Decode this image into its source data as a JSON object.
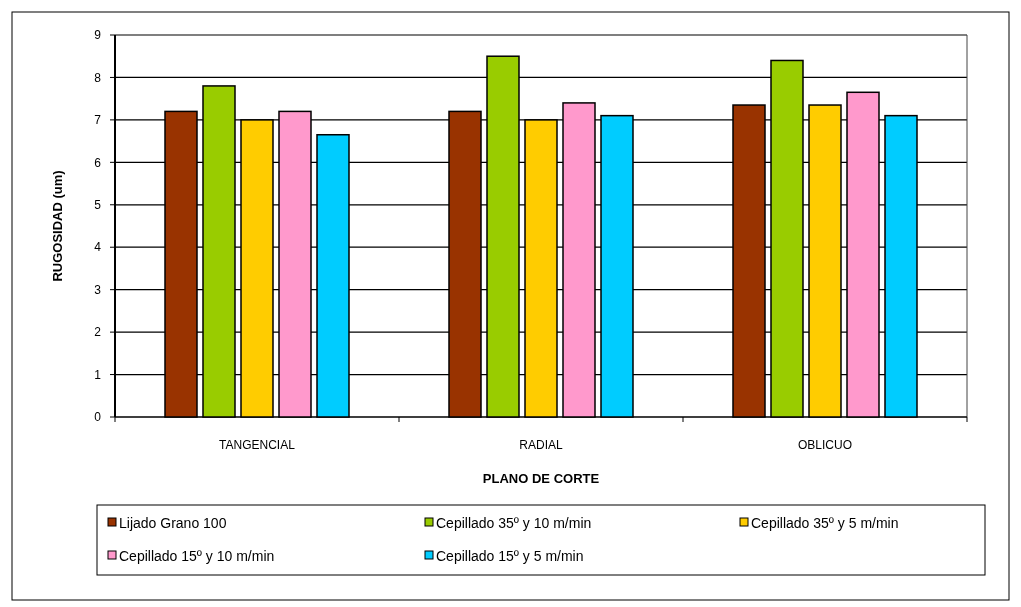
{
  "chart_data": {
    "type": "bar",
    "xlabel": "PLANO DE CORTE",
    "ylabel": "RUGOSIDAD (um)",
    "categories": [
      "TANGENCIAL",
      "RADIAL",
      "OBLICUO"
    ],
    "series": [
      {
        "name": "Lijado Grano 100",
        "color": "#993300",
        "values": [
          7.2,
          7.2,
          7.35
        ]
      },
      {
        "name": "Cepillado 35º y 10 m/min",
        "color": "#99cc00",
        "values": [
          7.8,
          8.5,
          8.4
        ]
      },
      {
        "name": "Cepillado 35º y 5 m/min",
        "color": "#ffcc00",
        "values": [
          7.0,
          7.0,
          7.35
        ]
      },
      {
        "name": "Cepillado 15º y 10 m/min",
        "color": "#ff99cc",
        "values": [
          7.2,
          7.4,
          7.65
        ]
      },
      {
        "name": "Cepillado 15º y 5 m/min",
        "color": "#00ccff",
        "values": [
          6.65,
          7.1,
          7.1
        ]
      }
    ],
    "ylim": [
      0,
      9
    ],
    "yticks": [
      0,
      1,
      2,
      3,
      4,
      5,
      6,
      7,
      8,
      9
    ],
    "grid": "y",
    "legend": "bottom"
  }
}
